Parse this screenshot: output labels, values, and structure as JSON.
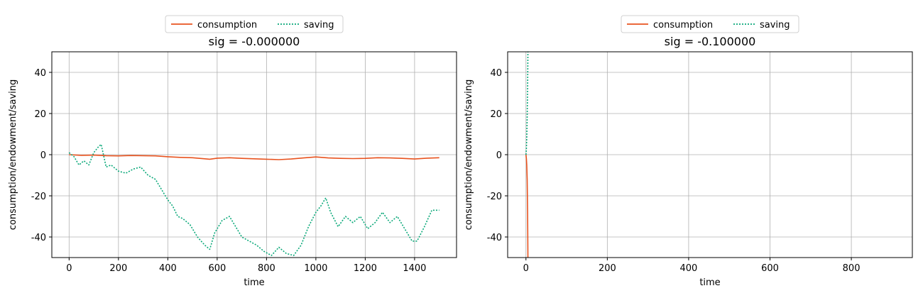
{
  "colors": {
    "consumption": "#e8531f",
    "saving": "#0aa879",
    "grid": "#b0b0b0"
  },
  "chart_data": [
    {
      "type": "line",
      "title": "sig = -0.000000",
      "xlabel": "time",
      "ylabel": "consumption/endowment/saving",
      "xlim": [
        -70,
        1570
      ],
      "ylim": [
        -50,
        50
      ],
      "xticks": [
        0,
        200,
        400,
        600,
        800,
        1000,
        1200,
        1400
      ],
      "yticks": [
        -40,
        -20,
        0,
        20,
        40
      ],
      "grid": true,
      "legend": {
        "position": "top-center",
        "entries": [
          "consumption",
          "saving"
        ]
      },
      "series": [
        {
          "name": "consumption",
          "style": "solid",
          "x": [
            0,
            50,
            100,
            150,
            200,
            250,
            300,
            350,
            400,
            450,
            500,
            550,
            570,
            600,
            650,
            700,
            750,
            800,
            850,
            900,
            950,
            1000,
            1050,
            1100,
            1150,
            1200,
            1250,
            1300,
            1350,
            1400,
            1450,
            1500
          ],
          "y": [
            0,
            -0.3,
            -0.2,
            -0.5,
            -0.6,
            -0.4,
            -0.5,
            -0.6,
            -1.0,
            -1.3,
            -1.5,
            -2.0,
            -2.2,
            -1.7,
            -1.5,
            -1.8,
            -2.0,
            -2.2,
            -2.4,
            -2.1,
            -1.6,
            -1.1,
            -1.6,
            -1.8,
            -1.9,
            -1.8,
            -1.5,
            -1.6,
            -1.8,
            -2.1,
            -1.7,
            -1.5
          ]
        },
        {
          "name": "saving",
          "style": "dotted",
          "x": [
            0,
            20,
            40,
            60,
            80,
            100,
            120,
            130,
            150,
            170,
            200,
            230,
            260,
            290,
            320,
            350,
            380,
            400,
            420,
            440,
            460,
            490,
            520,
            550,
            570,
            590,
            620,
            650,
            670,
            700,
            730,
            760,
            790,
            820,
            850,
            880,
            910,
            940,
            970,
            1000,
            1020,
            1040,
            1060,
            1090,
            1120,
            1150,
            1180,
            1210,
            1240,
            1270,
            1300,
            1330,
            1360,
            1390,
            1410,
            1440,
            1470,
            1500
          ],
          "y": [
            1,
            -1,
            -5,
            -3,
            -5,
            1,
            4,
            5,
            -6,
            -5,
            -8,
            -9,
            -7,
            -6,
            -10,
            -12,
            -18,
            -22,
            -25,
            -30,
            -31,
            -34,
            -40,
            -44,
            -46,
            -38,
            -32,
            -30,
            -34,
            -40,
            -42,
            -44,
            -47,
            -49,
            -45,
            -48,
            -49,
            -44,
            -35,
            -28,
            -25,
            -21,
            -28,
            -35,
            -30,
            -33,
            -30,
            -36,
            -33,
            -28,
            -33,
            -30,
            -36,
            -42,
            -42,
            -35,
            -27,
            -27
          ]
        }
      ]
    },
    {
      "type": "line",
      "title": "sig = -0.100000",
      "xlabel": "time",
      "ylabel": "consumption/endowment/saving",
      "xlim": [
        -45,
        950
      ],
      "ylim": [
        -50,
        50
      ],
      "xticks": [
        0,
        200,
        400,
        600,
        800
      ],
      "yticks": [
        -40,
        -20,
        0,
        20,
        40
      ],
      "grid": true,
      "legend": {
        "position": "top-center",
        "entries": [
          "consumption",
          "saving"
        ]
      },
      "series": [
        {
          "name": "consumption",
          "style": "solid",
          "x": [
            0,
            1,
            2,
            3,
            4,
            5
          ],
          "y": [
            0,
            -2,
            -5,
            -12,
            -28,
            -52
          ]
        },
        {
          "name": "saving",
          "style": "dotted",
          "x": [
            0,
            1,
            2,
            3,
            4,
            5
          ],
          "y": [
            0,
            3,
            8,
            18,
            32,
            52
          ]
        }
      ]
    }
  ]
}
